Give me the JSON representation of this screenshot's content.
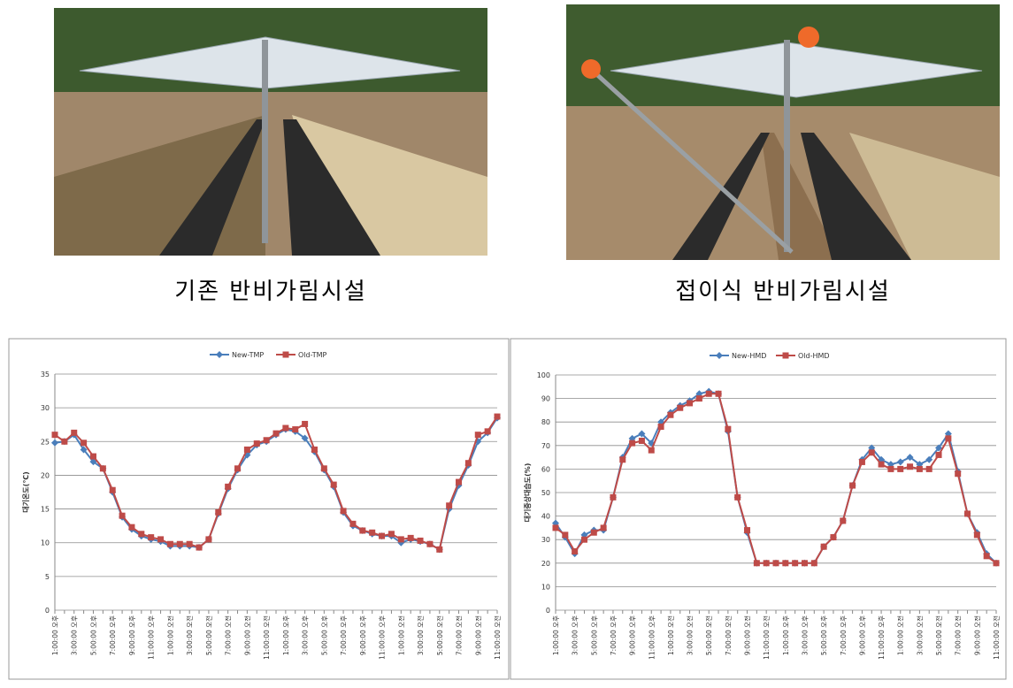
{
  "captions": [
    "기존 반비가림시설",
    "접이식 반비가림시설"
  ],
  "chart_data": [
    {
      "type": "line",
      "ylabel": "대기온도(℃)",
      "categories": [
        "1:00:00 오후",
        null,
        "3:00:00 오후",
        null,
        "5:00:00 오후",
        null,
        "7:00:00 오후",
        null,
        "9:00:00 오후",
        null,
        "11:00:00 오후",
        null,
        "1:00:00 오전",
        null,
        "3:00:00 오전",
        null,
        "5:00:00 오전",
        null,
        "7:00:00 오전",
        null,
        "9:00:00 오전",
        null,
        "11:00:00 오전",
        null,
        "1:00:00 오후",
        null,
        "3:00:00 오후",
        null,
        "5:00:00 오후",
        null,
        "7:00:00 오후",
        null,
        "9:00:00 오후",
        null,
        "11:00:00 오후",
        null,
        "1:00:00 오전",
        null,
        "3:00:00 오전",
        null,
        "5:00:00 오전",
        null,
        "7:00:00 오전",
        null,
        "9:00:00 오전",
        null,
        "11:00:00 오전"
      ],
      "series": [
        {
          "name": "New-TMP",
          "color": "#4a7ebb",
          "marker": "diamond",
          "values": [
            24.8,
            25,
            26,
            23.8,
            22,
            21,
            17.5,
            13.8,
            12,
            11,
            10.5,
            10.2,
            9.5,
            9.5,
            9.5,
            9.3,
            10.5,
            14.3,
            18,
            20.8,
            23,
            24.5,
            25,
            26,
            26.8,
            26.5,
            25.5,
            23.5,
            20.8,
            18.3,
            14.5,
            12.5,
            11.8,
            11.3,
            11,
            11,
            10,
            10.5,
            10.2,
            9.8,
            9,
            15,
            18.5,
            21.5,
            25,
            26.3,
            28.5
          ]
        },
        {
          "name": "Old-TMP",
          "color": "#be4b48",
          "marker": "square",
          "values": [
            26,
            25,
            26.3,
            24.8,
            22.8,
            21,
            17.8,
            14,
            12.3,
            11.3,
            10.8,
            10.5,
            9.8,
            9.8,
            9.8,
            9.3,
            10.5,
            14.5,
            18.3,
            21,
            23.8,
            24.7,
            25.2,
            26.2,
            27,
            26.8,
            27.6,
            23.8,
            21,
            18.6,
            14.7,
            12.8,
            11.8,
            11.5,
            11,
            11.3,
            10.5,
            10.7,
            10.3,
            9.8,
            9,
            15.5,
            19,
            21.8,
            26,
            26.5,
            28.7
          ]
        }
      ],
      "ylim": [
        0,
        35
      ],
      "yticks": [
        0,
        5,
        10,
        15,
        20,
        25,
        30,
        35
      ],
      "grid": true,
      "legend": "top"
    },
    {
      "type": "line",
      "ylabel": "대기중상대습도(%)",
      "categories": [
        "1:00:00 오후",
        null,
        "3:00:00 오후",
        null,
        "5:00:00 오후",
        null,
        "7:00:00 오후",
        null,
        "9:00:00 오후",
        null,
        "11:00:00 오후",
        null,
        "1:00:00 오전",
        null,
        "3:00:00 오전",
        null,
        "5:00:00 오전",
        null,
        "7:00:00 오전",
        null,
        "9:00:00 오전",
        null,
        "11:00:00 오전",
        null,
        "1:00:00 오후",
        null,
        "3:00:00 오후",
        null,
        "5:00:00 오후",
        null,
        "7:00:00 오후",
        null,
        "9:00:00 오후",
        null,
        "11:00:00 오후",
        null,
        "1:00:00 오전",
        null,
        "3:00:00 오전",
        null,
        "5:00:00 오전",
        null,
        "7:00:00 오전",
        null,
        "9:00:00 오전",
        null,
        "11:00:00 오전"
      ],
      "series": [
        {
          "name": "New-HMD",
          "color": "#4a7ebb",
          "marker": "diamond",
          "values": [
            37,
            31,
            24,
            32,
            34,
            34,
            48,
            65,
            73,
            75,
            71,
            80,
            84,
            87,
            89,
            92,
            93,
            92,
            76,
            48,
            33,
            20,
            20,
            20,
            20,
            20,
            20,
            20,
            27,
            31,
            38,
            53,
            64,
            69,
            64,
            62,
            63,
            65,
            62,
            64,
            69,
            75,
            59,
            41,
            33,
            24,
            20
          ]
        },
        {
          "name": "Old-HMD",
          "color": "#be4b48",
          "marker": "square",
          "values": [
            35,
            32,
            25,
            30,
            33,
            35,
            48,
            64,
            71,
            72,
            68,
            78,
            83,
            86,
            88,
            90,
            92,
            92,
            77,
            48,
            34,
            20,
            20,
            20,
            20,
            20,
            20,
            20,
            27,
            31,
            38,
            53,
            63,
            67,
            62,
            60,
            60,
            61,
            60,
            60,
            66,
            73,
            58,
            41,
            32,
            23,
            20
          ]
        }
      ],
      "ylim": [
        0,
        100
      ],
      "yticks": [
        0,
        10,
        20,
        30,
        40,
        50,
        60,
        70,
        80,
        90,
        100
      ],
      "grid": true,
      "legend": "top"
    }
  ]
}
